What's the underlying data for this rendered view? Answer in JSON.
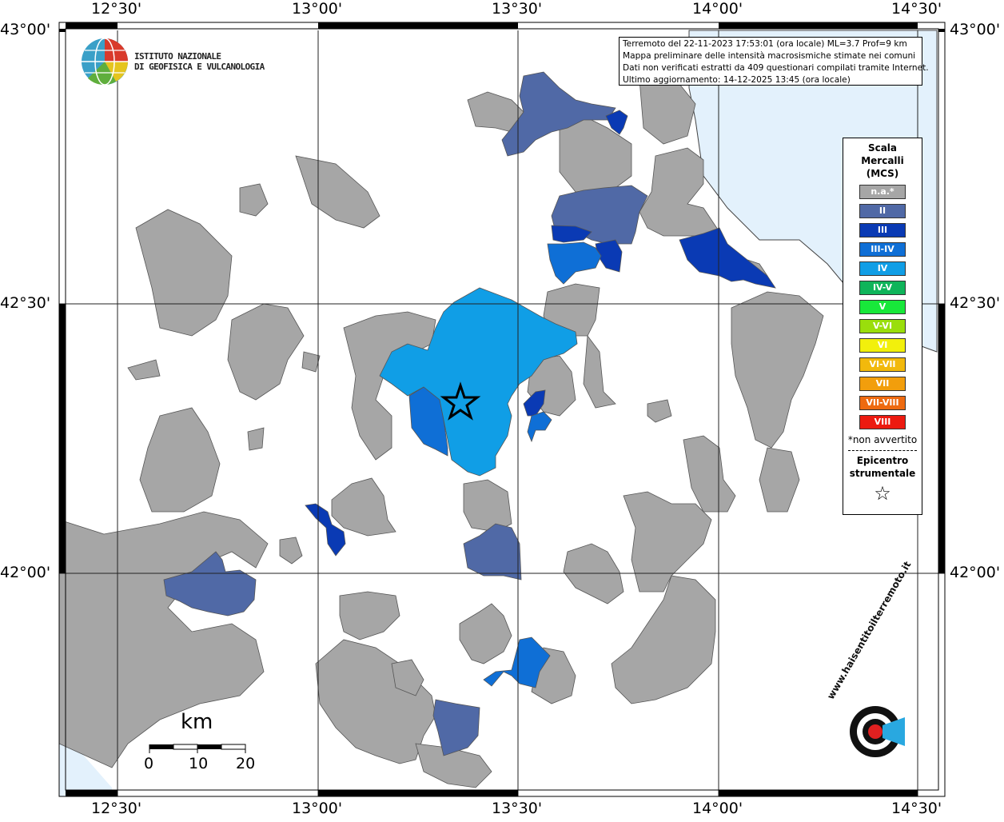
{
  "map": {
    "title_lines": [
      "Terremoto del 22-11-2023 17:53:01 (ora locale) ML=3.7 Prof=9 km",
      "Mappa preliminare delle intensità macrosismiche stimate nei comuni",
      "Dati non verificati estratti da 409 questionari compilati tramite Internet.",
      "Ultimo aggiornamento: 14-12-2025 13:45 (ora locale)"
    ],
    "longitude_labels": [
      "12°30'",
      "13°00'",
      "13°30'",
      "14°00'",
      "14°30'"
    ],
    "latitude_labels": [
      "43°00'",
      "42°30'",
      "42°00'"
    ],
    "logo": {
      "line1": "ISTITUTO NAZIONALE",
      "line2": "DI GEOFISICA E VULCANOLOGIA"
    },
    "sea_color": "#e3f1fc",
    "land_na_color": "#a6a6a6",
    "legend": {
      "title_lines": [
        "Scala",
        "Mercalli",
        "(MCS)"
      ],
      "items": [
        {
          "label": "n.a.*",
          "color": "#a6a6a6"
        },
        {
          "label": "II",
          "color": "#5069a6"
        },
        {
          "label": "III",
          "color": "#0a3ab4"
        },
        {
          "label": "III-IV",
          "color": "#0f6fd6"
        },
        {
          "label": "IV",
          "color": "#109ee6"
        },
        {
          "label": "IV-V",
          "color": "#0fb45a"
        },
        {
          "label": "V",
          "color": "#18e83a"
        },
        {
          "label": "V-VI",
          "color": "#9ade0c"
        },
        {
          "label": "VI",
          "color": "#f2f00c"
        },
        {
          "label": "VI-VII",
          "color": "#f2b90c"
        },
        {
          "label": "VII",
          "color": "#f29e0c"
        },
        {
          "label": "VII-VIII",
          "color": "#ee6a10"
        },
        {
          "label": "VIII",
          "color": "#ec1a10"
        }
      ],
      "note": "*non avvertito",
      "epicenter_lines": [
        "Epicentro",
        "strumentale"
      ],
      "epicenter_symbol": "☆"
    },
    "scale_bar": {
      "unit": "km",
      "ticks": [
        "0",
        "10",
        "20"
      ]
    },
    "badge_text": "www.haisentitoilterremoto.it"
  }
}
